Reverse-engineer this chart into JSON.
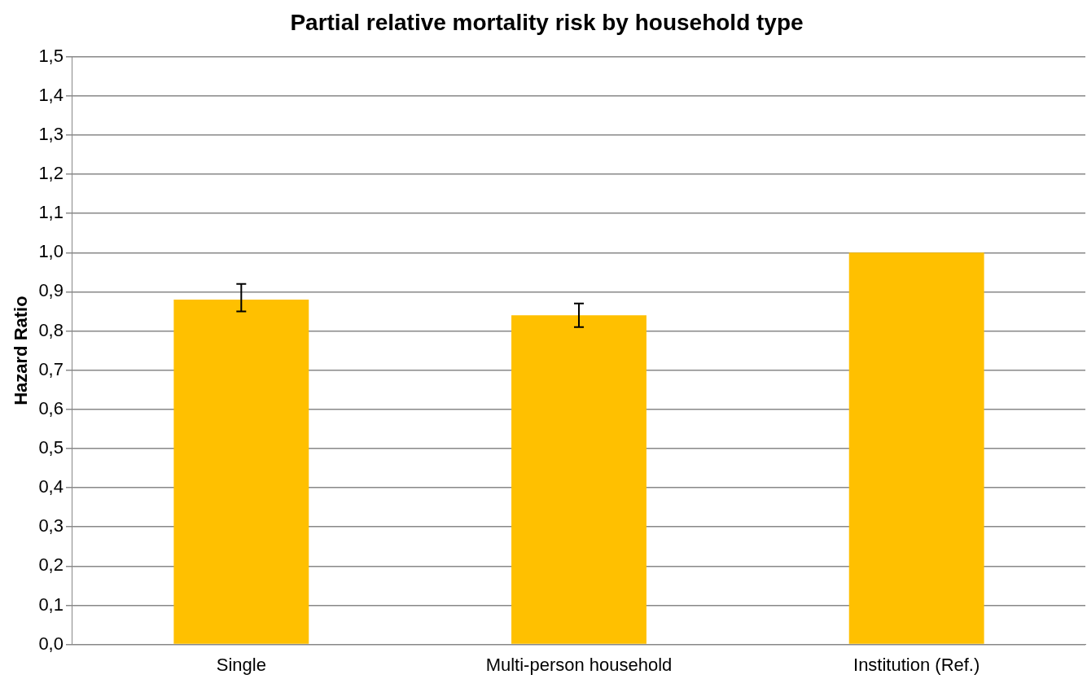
{
  "chart_data": {
    "type": "bar",
    "title": "Partial relative mortality risk by household type",
    "ylabel": "Hazard Ratio",
    "categories": [
      "Single",
      "Multi-person household",
      "Institution (Ref.)"
    ],
    "values": [
      0.88,
      0.84,
      1.0
    ],
    "color": "#ffc000",
    "errors": [
      [
        0.85,
        0.92
      ],
      [
        0.81,
        0.87
      ],
      null
    ],
    "ylim": [
      0,
      1.5
    ],
    "yticks": [
      {
        "value": 0,
        "label": "0,0"
      },
      {
        "value": 0.1,
        "label": "0,1"
      },
      {
        "value": 0.2,
        "label": "0,2"
      },
      {
        "value": 0.3,
        "label": "0,3"
      },
      {
        "value": 0.4,
        "label": "0,4"
      },
      {
        "value": 0.5,
        "label": "0,5"
      },
      {
        "value": 0.6,
        "label": "0,6"
      },
      {
        "value": 0.7,
        "label": "0,7"
      },
      {
        "value": 0.8,
        "label": "0,8"
      },
      {
        "value": 0.9,
        "label": "0,9"
      },
      {
        "value": 1.0,
        "label": "1,0"
      },
      {
        "value": 1.1,
        "label": "1,1"
      },
      {
        "value": 1.2,
        "label": "1,2"
      },
      {
        "value": 1.3,
        "label": "1,3"
      },
      {
        "value": 1.4,
        "label": "1,4"
      },
      {
        "value": 1.5,
        "label": "1,5"
      }
    ],
    "grid": "y",
    "legend": false
  }
}
